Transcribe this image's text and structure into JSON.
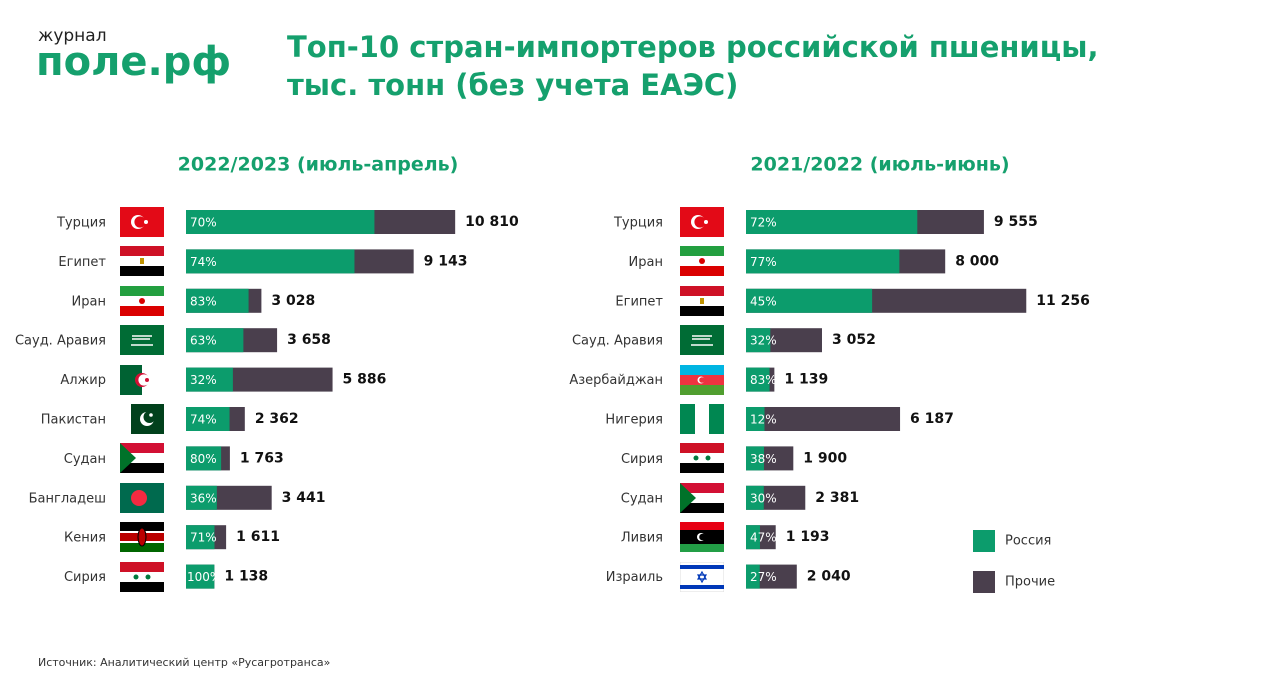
{
  "logo": {
    "small": "журнал",
    "main": "поле.рф"
  },
  "title": [
    "Топ-10 стран-импортеров российской пшеницы,",
    "тыс. тонн (без учета ЕАЭС)"
  ],
  "legend": [
    {
      "name": "Россия",
      "color": "#0c9c6c"
    },
    {
      "name": "Прочие",
      "color": "#4a3f4d"
    }
  ],
  "source": "Источник: Аналитический центр «Русагротранса»",
  "chart_data": [
    {
      "type": "bar",
      "title": "2022/2023 (июль-апрель)",
      "categories": [
        "Турция",
        "Египет",
        "Иран",
        "Сауд. Аравия",
        "Алжир",
        "Пакистан",
        "Судан",
        "Бангладеш",
        "Кения",
        "Сирия"
      ],
      "values": [
        10810,
        9143,
        3028,
        3658,
        5886,
        2362,
        1763,
        3441,
        1611,
        1138
      ],
      "value_labels": [
        "10 810",
        "9 143",
        "3 028",
        "3 658",
        "5 886",
        "2 362",
        "1 763",
        "3 441",
        "1 611",
        "1 138"
      ],
      "russia_share": [
        70,
        74,
        83,
        63,
        32,
        74,
        80,
        36,
        71,
        100
      ],
      "russia_share_labels": [
        "70%",
        "74%",
        "83%",
        "63%",
        "32%",
        "74%",
        "80%",
        "36%",
        "71%",
        "100%"
      ]
    },
    {
      "type": "bar",
      "title": "2021/2022 (июль-июнь)",
      "categories": [
        "Турция",
        "Иран",
        "Египет",
        "Сауд. Аравия",
        "Азербайджан",
        "Нигерия",
        "Сирия",
        "Судан",
        "Ливия",
        "Израиль"
      ],
      "values": [
        9555,
        8000,
        11256,
        3052,
        1139,
        6187,
        1900,
        2381,
        1193,
        2040
      ],
      "value_labels": [
        "9 555",
        "8 000",
        "11 256",
        "3 052",
        "1 139",
        "6 187",
        "1 900",
        "2 381",
        "1 193",
        "2 040"
      ],
      "russia_share": [
        72,
        77,
        45,
        32,
        83,
        12,
        38,
        30,
        47,
        27
      ],
      "russia_share_labels": [
        "72%",
        "77%",
        "45%",
        "32%",
        "83%",
        "12%",
        "38%",
        "30%",
        "47%",
        "27%"
      ]
    }
  ]
}
